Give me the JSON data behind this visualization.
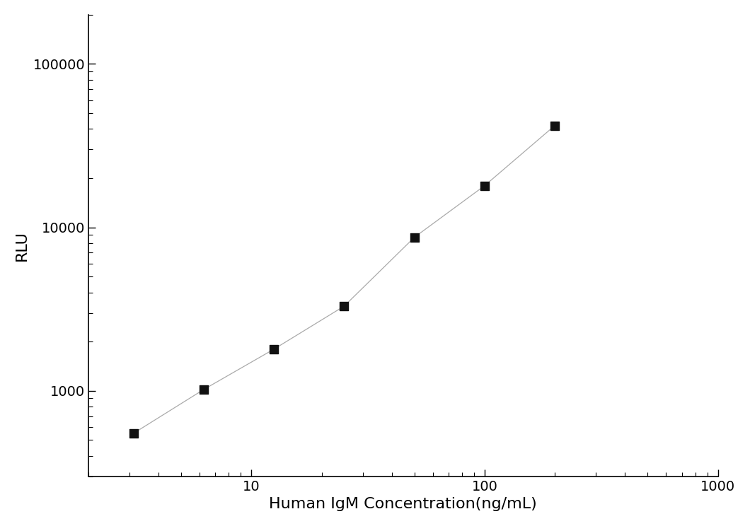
{
  "x_data": [
    3.125,
    6.25,
    12.5,
    25,
    50,
    100,
    200
  ],
  "y_data": [
    550,
    1020,
    1800,
    3300,
    8700,
    18000,
    42000
  ],
  "xlabel": "Human IgM Concentration(ng/mL)",
  "ylabel": "RLU",
  "xlim": [
    2,
    1000
  ],
  "ylim": [
    300,
    200000
  ],
  "x_ticks": [
    10,
    100,
    1000
  ],
  "y_ticks": [
    1000,
    10000,
    100000
  ],
  "line_color": "#aaaaaa",
  "marker_color": "#111111",
  "marker_size": 9,
  "linewidth": 0.9,
  "background_color": "#ffffff",
  "xlabel_fontsize": 16,
  "ylabel_fontsize": 16,
  "tick_fontsize": 14
}
